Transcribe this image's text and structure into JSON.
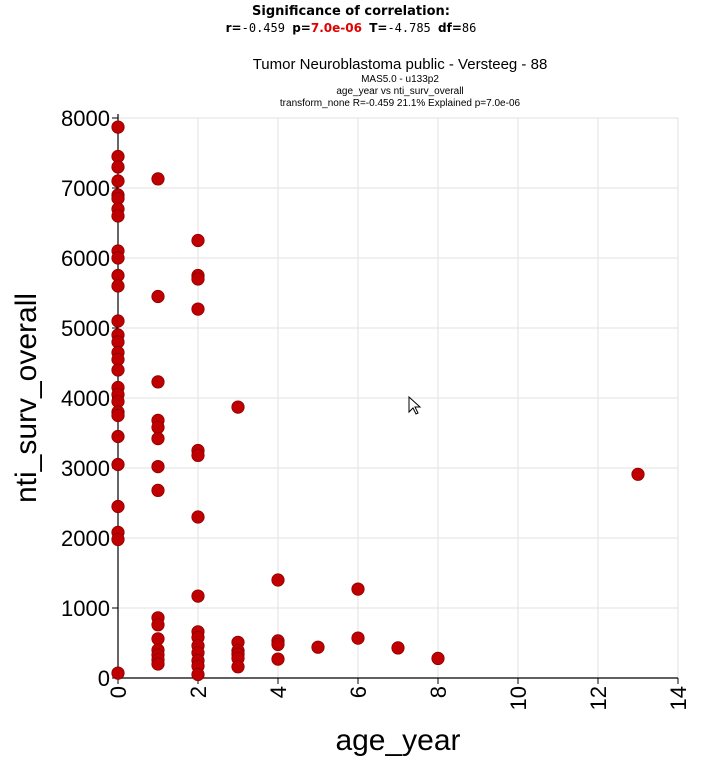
{
  "significance": {
    "title": "Significance of correlation:",
    "r_label": "r=",
    "r_value": "-0.459",
    "p_label": "p=",
    "p_value": "7.0e-06",
    "t_label": "T=",
    "t_value": "-4.785",
    "df_label": "df=",
    "df_value": "86"
  },
  "chart_data": {
    "type": "scatter",
    "title": "Tumor Neuroblastoma public - Versteeg - 88",
    "subtitle_lines": [
      "MAS5.0 - u133p2",
      "age_year vs nti_surv_overall",
      "transform_none R=-0.459 21.1% Explained p=7.0e-06"
    ],
    "xlabel": "age_year",
    "ylabel": "nti_surv_overall",
    "xlim": [
      0,
      14
    ],
    "ylim": [
      0,
      8000
    ],
    "x_ticks": [
      0,
      2,
      4,
      6,
      8,
      10,
      12,
      14
    ],
    "y_ticks": [
      0,
      1000,
      2000,
      3000,
      4000,
      5000,
      6000,
      7000,
      8000
    ],
    "grid": true,
    "marker_color": "#c00000",
    "points": [
      {
        "x": 0,
        "y": 7870
      },
      {
        "x": 0,
        "y": 7450
      },
      {
        "x": 0,
        "y": 7300
      },
      {
        "x": 0,
        "y": 7100
      },
      {
        "x": 0,
        "y": 6900
      },
      {
        "x": 0,
        "y": 6850
      },
      {
        "x": 0,
        "y": 6700
      },
      {
        "x": 0,
        "y": 6600
      },
      {
        "x": 0,
        "y": 6100
      },
      {
        "x": 0,
        "y": 6000
      },
      {
        "x": 0,
        "y": 5750
      },
      {
        "x": 0,
        "y": 5600
      },
      {
        "x": 0,
        "y": 5100
      },
      {
        "x": 0,
        "y": 4900
      },
      {
        "x": 0,
        "y": 4800
      },
      {
        "x": 0,
        "y": 4650
      },
      {
        "x": 0,
        "y": 4550
      },
      {
        "x": 0,
        "y": 4400
      },
      {
        "x": 0,
        "y": 4150
      },
      {
        "x": 0,
        "y": 4050
      },
      {
        "x": 0,
        "y": 3950
      },
      {
        "x": 0,
        "y": 3800
      },
      {
        "x": 0,
        "y": 3750
      },
      {
        "x": 0,
        "y": 3450
      },
      {
        "x": 0,
        "y": 3050
      },
      {
        "x": 0,
        "y": 2450
      },
      {
        "x": 0,
        "y": 2080
      },
      {
        "x": 0,
        "y": 1980
      },
      {
        "x": 0,
        "y": 70
      },
      {
        "x": 1,
        "y": 7130
      },
      {
        "x": 1,
        "y": 5450
      },
      {
        "x": 1,
        "y": 4230
      },
      {
        "x": 1,
        "y": 3680
      },
      {
        "x": 1,
        "y": 3580
      },
      {
        "x": 1,
        "y": 3420
      },
      {
        "x": 1,
        "y": 3020
      },
      {
        "x": 1,
        "y": 2680
      },
      {
        "x": 1,
        "y": 860
      },
      {
        "x": 1,
        "y": 760
      },
      {
        "x": 1,
        "y": 560
      },
      {
        "x": 1,
        "y": 400
      },
      {
        "x": 1,
        "y": 330
      },
      {
        "x": 1,
        "y": 260
      },
      {
        "x": 1,
        "y": 200
      },
      {
        "x": 2,
        "y": 6250
      },
      {
        "x": 2,
        "y": 5750
      },
      {
        "x": 2,
        "y": 5700
      },
      {
        "x": 2,
        "y": 5270
      },
      {
        "x": 2,
        "y": 3250
      },
      {
        "x": 2,
        "y": 3180
      },
      {
        "x": 2,
        "y": 2300
      },
      {
        "x": 2,
        "y": 1170
      },
      {
        "x": 2,
        "y": 660
      },
      {
        "x": 2,
        "y": 580
      },
      {
        "x": 2,
        "y": 460
      },
      {
        "x": 2,
        "y": 360
      },
      {
        "x": 2,
        "y": 250
      },
      {
        "x": 2,
        "y": 170
      },
      {
        "x": 2,
        "y": 50
      },
      {
        "x": 3,
        "y": 3870
      },
      {
        "x": 3,
        "y": 510
      },
      {
        "x": 3,
        "y": 390
      },
      {
        "x": 3,
        "y": 340
      },
      {
        "x": 3,
        "y": 280
      },
      {
        "x": 3,
        "y": 160
      },
      {
        "x": 4,
        "y": 1400
      },
      {
        "x": 4,
        "y": 530
      },
      {
        "x": 4,
        "y": 480
      },
      {
        "x": 4,
        "y": 270
      },
      {
        "x": 5,
        "y": 440
      },
      {
        "x": 6,
        "y": 1270
      },
      {
        "x": 6,
        "y": 570
      },
      {
        "x": 7,
        "y": 430
      },
      {
        "x": 8,
        "y": 280
      },
      {
        "x": 13,
        "y": 2910
      }
    ]
  }
}
